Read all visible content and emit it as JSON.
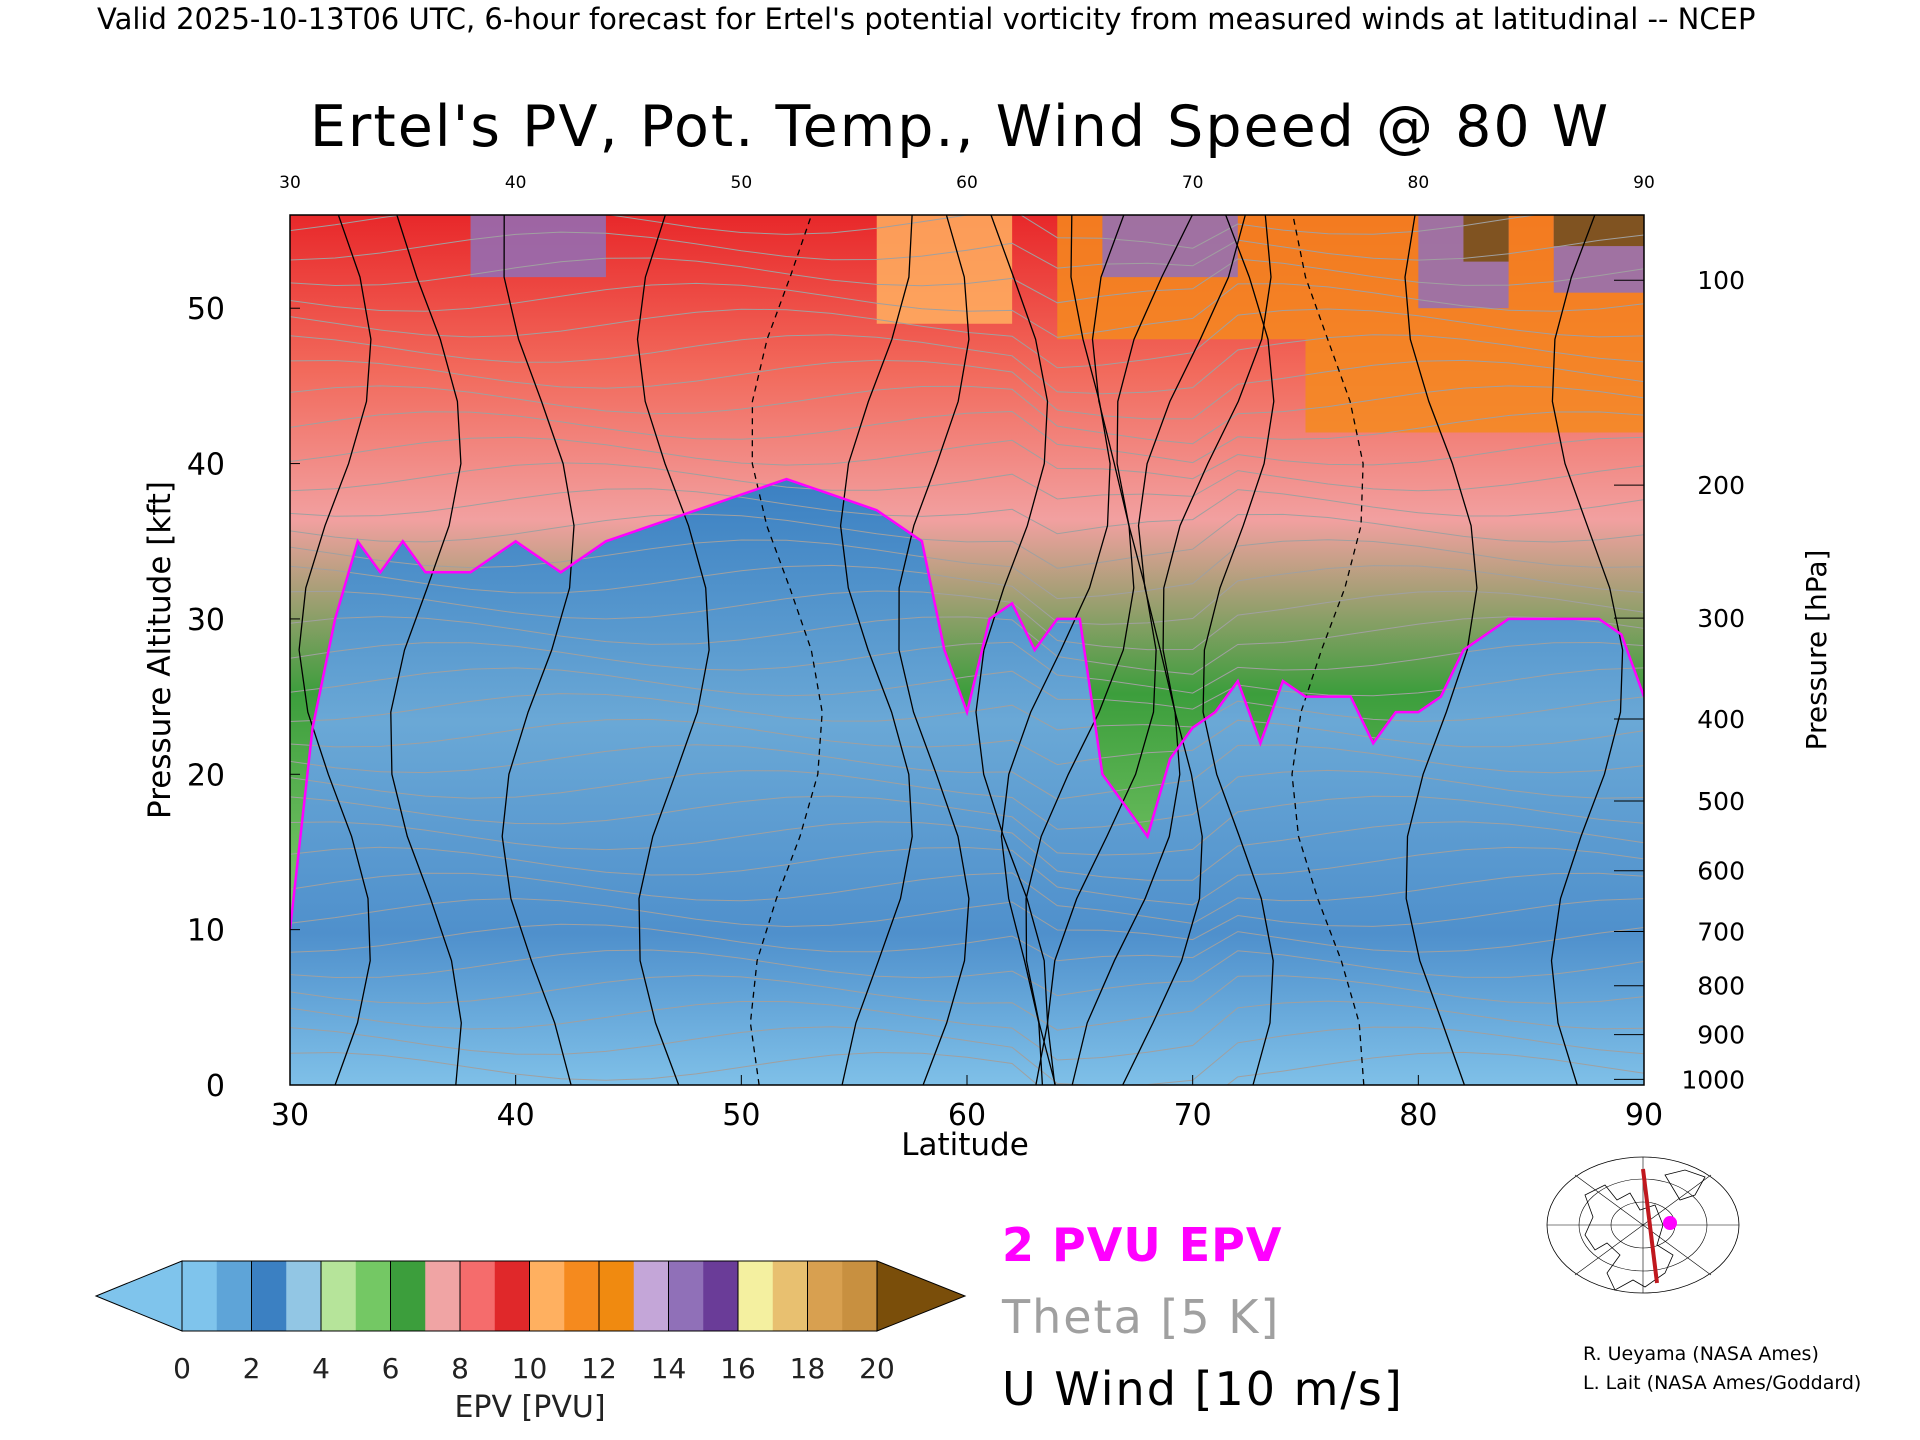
{
  "header": "Valid 2025-10-13T06 UTC, 6-hour forecast for Ertel's potential vorticity from measured winds at latitudinal -- NCEP",
  "chart_data": {
    "type": "heatmap",
    "title": "Ertel's PV, Pot. Temp., Wind Speed @ 80 W",
    "xlabel": "Latitude",
    "ylabel": "Pressure Altitude [kft]",
    "ylabel_right": "Pressure [hPa]",
    "xlim": [
      30,
      90
    ],
    "ylim": [
      0,
      56
    ],
    "x_ticks": [
      30,
      40,
      50,
      60,
      70,
      80,
      90
    ],
    "x_tick_labels": [
      "30",
      "40",
      "50",
      "60",
      "70",
      "80",
      "90"
    ],
    "y_ticks": [
      0,
      10,
      20,
      30,
      40,
      50
    ],
    "y_tick_labels": [
      "0",
      "10",
      "20",
      "30",
      "40",
      "50"
    ],
    "pressure_ticks_hPa": [
      "100",
      "200",
      "300",
      "400",
      "500",
      "600",
      "700",
      "800",
      "900",
      "1000"
    ],
    "tropopause_2pvu_kft": {
      "lat": [
        30,
        31,
        32,
        33,
        34,
        35,
        36,
        38,
        40,
        42,
        44,
        46,
        48,
        50,
        52,
        54,
        56,
        58,
        59,
        60,
        61,
        62,
        63,
        64,
        65,
        66,
        67,
        68,
        69,
        70,
        71,
        72,
        73,
        74,
        75,
        76,
        77,
        78,
        79,
        80,
        81,
        82,
        84,
        86,
        88,
        89,
        90
      ],
      "kft": [
        10,
        23,
        30,
        35,
        33,
        35,
        33,
        33,
        35,
        33,
        35,
        36,
        37,
        38,
        39,
        38,
        37,
        35,
        28,
        24,
        30,
        31,
        28,
        30,
        30,
        20,
        18,
        16,
        21,
        23,
        24,
        26,
        22,
        26,
        25,
        25,
        25,
        22,
        24,
        24,
        25,
        28,
        30,
        30,
        30,
        29,
        25
      ]
    },
    "epv_colorbar": {
      "label": "EPV [PVU]",
      "ticks": [
        "0",
        "2",
        "4",
        "6",
        "8",
        "10",
        "12",
        "14",
        "16",
        "18",
        "20"
      ],
      "levels": [
        0,
        1,
        2,
        3,
        4,
        5,
        6,
        7,
        8,
        9,
        10,
        11,
        12,
        13,
        14,
        15,
        16,
        17,
        18,
        19,
        20
      ],
      "colors": [
        "#7fc4ec",
        "#5ea4d8",
        "#3b80c2",
        "#92c6e4",
        "#b6e49a",
        "#74c864",
        "#3c9e3c",
        "#f0a4a4",
        "#f56c6c",
        "#e0282a",
        "#ffb060",
        "#f58a1e",
        "#f08a10",
        "#c4a6d8",
        "#9070b8",
        "#6a3c98",
        "#f4f0a0",
        "#e8c070",
        "#d8a050",
        "#c89040"
      ],
      "under_color": "#7fc4ec",
      "over_color": "#7a4e0a"
    },
    "legend": {
      "pvu": "2 PVU EPV",
      "theta": "Theta [5 K]",
      "uwind": "U Wind [10 m/s]"
    },
    "colors": {
      "tropopause": "#ff00ff",
      "theta": "#a0a0a0",
      "uwind": "#000000",
      "transect": "#c0181e"
    }
  },
  "credits": {
    "line1": "R. Ueyama (NASA Ames)",
    "line2": "L. Lait (NASA Ames/Goddard)"
  }
}
